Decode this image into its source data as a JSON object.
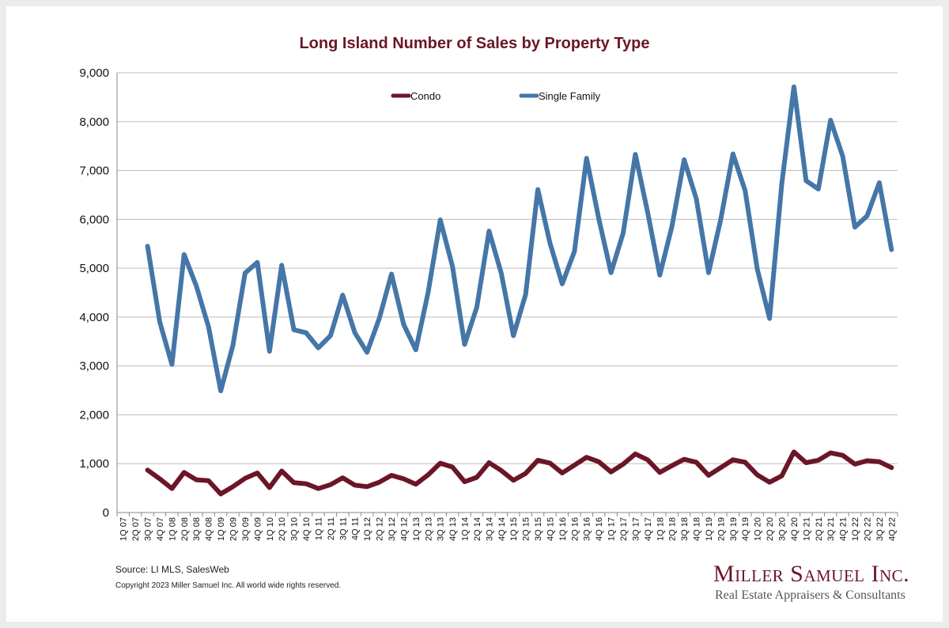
{
  "title": "Long Island Number of Sales by Property Type",
  "source": "Source:  LI MLS, SalesWeb",
  "copyright": "Copyright 2023 Miller Samuel Inc.  All world wide rights reserved.",
  "brand": {
    "name": "Miller Samuel Inc.",
    "tagline": "Real Estate Appraisers & Consultants",
    "color": "#6b1626"
  },
  "chart_data": {
    "type": "line",
    "title": "Long Island Number of Sales by Property Type",
    "xlabel": "",
    "ylabel": "",
    "ylim": [
      0,
      9000
    ],
    "yticks": [
      0,
      1000,
      2000,
      3000,
      4000,
      5000,
      6000,
      7000,
      8000,
      9000
    ],
    "ytick_labels": [
      "0",
      "1,000",
      "2,000",
      "3,000",
      "4,000",
      "5,000",
      "6,000",
      "7,000",
      "8,000",
      "9,000"
    ],
    "grid": true,
    "legend_position": "top",
    "categories": [
      "1Q 07",
      "2Q 07",
      "3Q 07",
      "4Q 07",
      "1Q 08",
      "2Q 08",
      "3Q 08",
      "4Q 08",
      "1Q 09",
      "2Q 09",
      "3Q 09",
      "4Q 09",
      "1Q 10",
      "2Q 10",
      "3Q 10",
      "4Q 10",
      "1Q 11",
      "2Q 11",
      "3Q 11",
      "4Q 11",
      "1Q 12",
      "2Q 12",
      "3Q 12",
      "4Q 12",
      "1Q 13",
      "2Q 13",
      "3Q 13",
      "4Q 13",
      "1Q 14",
      "2Q 14",
      "3Q 14",
      "4Q 14",
      "1Q 15",
      "2Q 15",
      "3Q 15",
      "4Q 15",
      "1Q 16",
      "2Q 16",
      "3Q 16",
      "4Q 16",
      "1Q 17",
      "2Q 17",
      "3Q 17",
      "4Q 17",
      "1Q 18",
      "2Q 18",
      "3Q 18",
      "4Q 18",
      "1Q 19",
      "2Q 19",
      "3Q 19",
      "4Q 19",
      "1Q 20",
      "2Q 20",
      "3Q 20",
      "4Q 20",
      "1Q 21",
      "2Q 21",
      "3Q 21",
      "4Q 21",
      "1Q 22",
      "2Q 22",
      "3Q 22",
      "4Q 22"
    ],
    "series": [
      {
        "name": "Condo",
        "color": "#6b1626",
        "values": [
          null,
          null,
          870,
          690,
          490,
          820,
          670,
          650,
          380,
          530,
          700,
          810,
          510,
          850,
          610,
          590,
          490,
          570,
          710,
          560,
          530,
          620,
          760,
          690,
          580,
          770,
          1010,
          930,
          630,
          720,
          1020,
          860,
          660,
          800,
          1070,
          1010,
          810,
          970,
          1130,
          1040,
          830,
          990,
          1200,
          1080,
          820,
          960,
          1090,
          1030,
          760,
          920,
          1080,
          1030,
          770,
          620,
          750,
          1240,
          1020,
          1070,
          1220,
          1170,
          990,
          1060,
          1040,
          920
        ]
      },
      {
        "name": "Single Family",
        "color": "#4576a8",
        "values": [
          null,
          null,
          5450,
          3900,
          3030,
          5280,
          4640,
          3800,
          2490,
          3420,
          4900,
          5120,
          3300,
          5060,
          3740,
          3680,
          3370,
          3620,
          4450,
          3680,
          3280,
          3970,
          4880,
          3850,
          3330,
          4500,
          5990,
          5040,
          3440,
          4200,
          5760,
          4900,
          3620,
          4460,
          6610,
          5510,
          4680,
          5340,
          7250,
          6010,
          4910,
          5720,
          7330,
          6150,
          4860,
          5860,
          7220,
          6420,
          4910,
          6000,
          7340,
          6590,
          4980,
          3970,
          6720,
          8710,
          6790,
          6620,
          8030,
          7290,
          5840,
          6070,
          6750,
          5380
        ]
      }
    ]
  }
}
